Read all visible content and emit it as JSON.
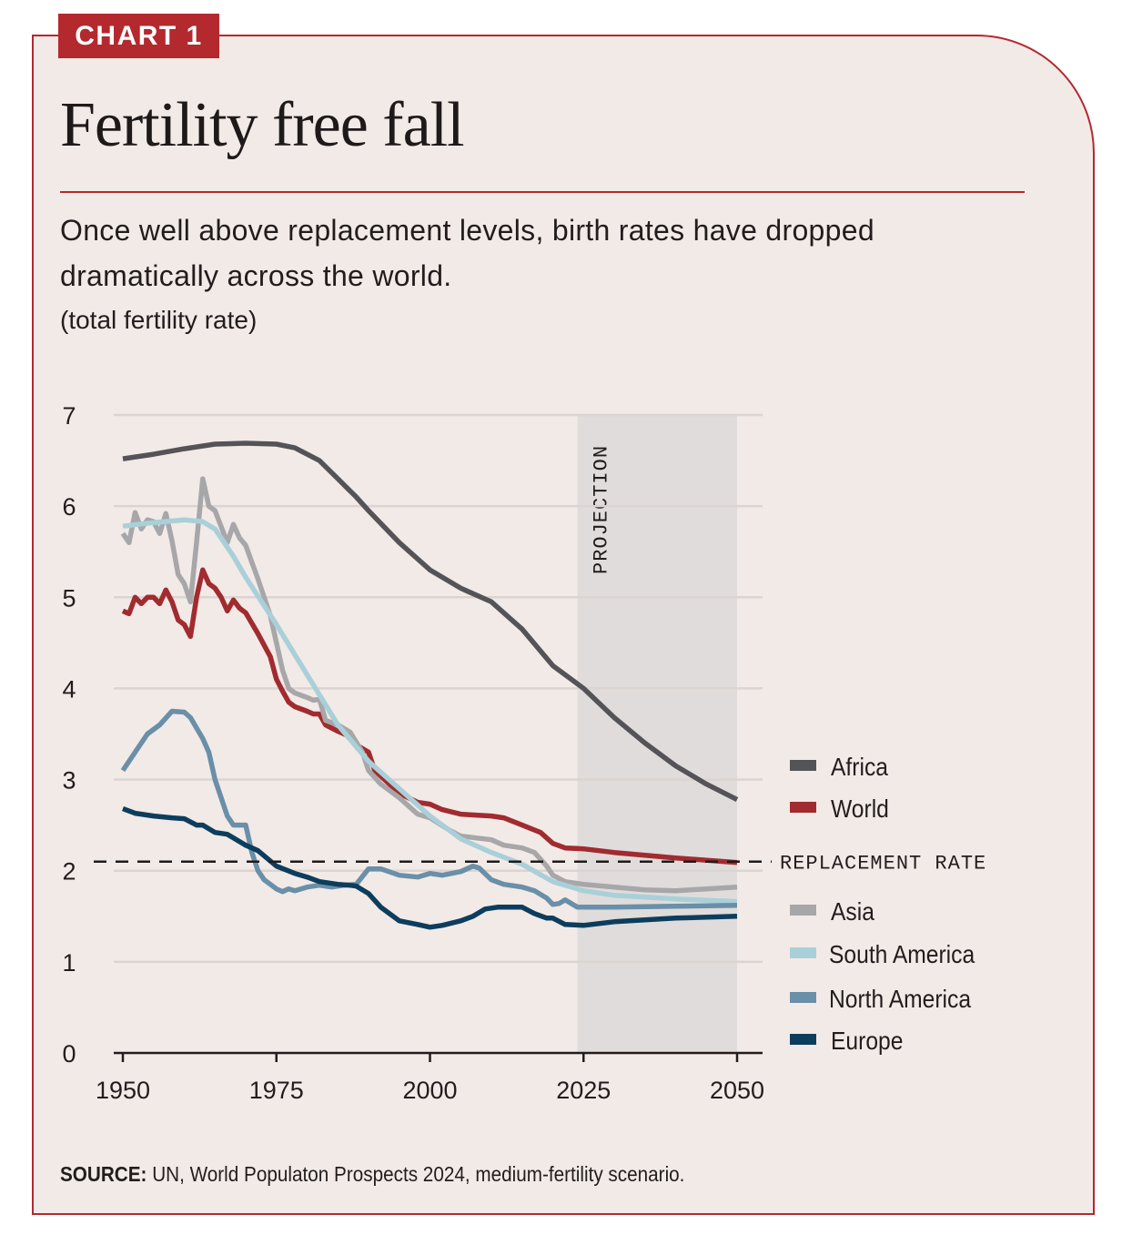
{
  "badge": "CHART 1",
  "title": "Fertility free fall",
  "subtitle": "Once well above replacement levels, birth rates have dropped dramatically across the world.",
  "unit": "(total fertility rate)",
  "source_label": "SOURCE:",
  "source_text": " UN, World Populaton Prospects 2024, medium-fertility scenario.",
  "chart_data": {
    "type": "line",
    "title": "Fertility free fall",
    "ylabel": "total fertility rate",
    "xlim": [
      1950,
      2050
    ],
    "ylim": [
      0,
      7
    ],
    "xticks": [
      1950,
      1975,
      2000,
      2025,
      2050
    ],
    "yticks": [
      0,
      1,
      2,
      3,
      4,
      5,
      6,
      7
    ],
    "grid": "horizontal",
    "legend": "right",
    "projection": {
      "label": "PROJECTION",
      "from": 2024,
      "to": 2050,
      "color": "#e0dcdb"
    },
    "reference": {
      "label": "REPLACEMENT RATE",
      "value": 2.1
    },
    "series": [
      {
        "name": "Africa",
        "color": "#545357",
        "x": [
          1950,
          1955,
          1960,
          1965,
          1970,
          1975,
          1978,
          1982,
          1985,
          1988,
          1990,
          1995,
          2000,
          2005,
          2010,
          2015,
          2020,
          2025,
          2030,
          2035,
          2040,
          2045,
          2050
        ],
        "y": [
          6.52,
          6.57,
          6.63,
          6.68,
          6.69,
          6.68,
          6.64,
          6.5,
          6.3,
          6.1,
          5.95,
          5.6,
          5.3,
          5.1,
          4.95,
          4.65,
          4.25,
          4.0,
          3.68,
          3.4,
          3.15,
          2.95,
          2.78
        ]
      },
      {
        "name": "World",
        "color": "#a12b2f",
        "x": [
          1950,
          1951,
          1952,
          1953,
          1954,
          1955,
          1956,
          1957,
          1958,
          1959,
          1960,
          1961,
          1962,
          1963,
          1964,
          1965,
          1966,
          1967,
          1968,
          1969,
          1970,
          1972,
          1974,
          1975,
          1976,
          1977,
          1978,
          1980,
          1981,
          1982,
          1983,
          1985,
          1987,
          1988,
          1990,
          1991,
          1995,
          1998,
          2000,
          2002,
          2005,
          2010,
          2012,
          2015,
          2018,
          2020,
          2022,
          2025,
          2030,
          2040,
          2050
        ],
        "y": [
          4.85,
          4.82,
          5.0,
          4.93,
          5.0,
          5.0,
          4.93,
          5.08,
          4.95,
          4.75,
          4.7,
          4.57,
          5.0,
          5.3,
          5.15,
          5.1,
          5.0,
          4.85,
          4.97,
          4.88,
          4.83,
          4.6,
          4.35,
          4.1,
          3.97,
          3.85,
          3.8,
          3.75,
          3.72,
          3.72,
          3.6,
          3.53,
          3.47,
          3.38,
          3.3,
          3.1,
          2.85,
          2.75,
          2.73,
          2.67,
          2.62,
          2.6,
          2.58,
          2.5,
          2.42,
          2.3,
          2.25,
          2.24,
          2.2,
          2.14,
          2.09
        ]
      },
      {
        "name": "Asia",
        "color": "#a7a7aa",
        "x": [
          1950,
          1951,
          1952,
          1953,
          1954,
          1955,
          1956,
          1957,
          1958,
          1959,
          1960,
          1961,
          1962,
          1963,
          1964,
          1965,
          1967,
          1968,
          1969,
          1970,
          1972,
          1974,
          1975,
          1976,
          1977,
          1978,
          1980,
          1981,
          1982,
          1983,
          1985,
          1987,
          1989,
          1990,
          1992,
          1995,
          1998,
          2000,
          2003,
          2005,
          2010,
          2012,
          2015,
          2017,
          2019,
          2020,
          2022,
          2025,
          2030,
          2035,
          2040,
          2045,
          2050
        ],
        "y": [
          5.7,
          5.6,
          5.93,
          5.75,
          5.85,
          5.83,
          5.7,
          5.92,
          5.62,
          5.25,
          5.15,
          4.95,
          5.6,
          6.3,
          6.0,
          5.95,
          5.6,
          5.8,
          5.65,
          5.57,
          5.2,
          4.8,
          4.5,
          4.2,
          4.0,
          3.95,
          3.9,
          3.87,
          3.88,
          3.65,
          3.6,
          3.52,
          3.3,
          3.1,
          2.95,
          2.8,
          2.62,
          2.58,
          2.45,
          2.38,
          2.34,
          2.28,
          2.25,
          2.2,
          2.05,
          1.95,
          1.88,
          1.85,
          1.82,
          1.79,
          1.78,
          1.8,
          1.82
        ]
      },
      {
        "name": "South America",
        "color": "#a9d0d8",
        "x": [
          1950,
          1955,
          1960,
          1963,
          1965,
          1968,
          1970,
          1975,
          1980,
          1985,
          1990,
          1995,
          2000,
          2005,
          2010,
          2015,
          2020,
          2025,
          2030,
          2040,
          2050
        ],
        "y": [
          5.78,
          5.82,
          5.85,
          5.83,
          5.75,
          5.45,
          5.22,
          4.7,
          4.15,
          3.6,
          3.2,
          2.9,
          2.6,
          2.35,
          2.2,
          2.07,
          1.88,
          1.78,
          1.73,
          1.69,
          1.66
        ]
      },
      {
        "name": "North America",
        "color": "#6a8fa8",
        "x": [
          1950,
          1952,
          1954,
          1956,
          1958,
          1960,
          1961,
          1963,
          1964,
          1965,
          1967,
          1968,
          1970,
          1971,
          1972,
          1973,
          1975,
          1976,
          1977,
          1978,
          1980,
          1982,
          1984,
          1986,
          1988,
          1990,
          1992,
          1995,
          1998,
          2000,
          2002,
          2005,
          2007,
          2008,
          2010,
          2012,
          2015,
          2017,
          2019,
          2020,
          2021,
          2022,
          2024,
          2030,
          2040,
          2050
        ],
        "y": [
          3.1,
          3.3,
          3.5,
          3.6,
          3.75,
          3.74,
          3.68,
          3.45,
          3.3,
          3.0,
          2.6,
          2.5,
          2.5,
          2.2,
          2.0,
          1.9,
          1.8,
          1.77,
          1.8,
          1.78,
          1.82,
          1.84,
          1.82,
          1.84,
          1.85,
          2.02,
          2.02,
          1.95,
          1.93,
          1.97,
          1.95,
          1.99,
          2.05,
          2.03,
          1.9,
          1.85,
          1.82,
          1.78,
          1.7,
          1.63,
          1.64,
          1.68,
          1.6,
          1.6,
          1.61,
          1.62
        ]
      },
      {
        "name": "Europe",
        "color": "#0d3d5c",
        "x": [
          1950,
          1952,
          1955,
          1958,
          1960,
          1962,
          1963,
          1965,
          1967,
          1970,
          1972,
          1975,
          1978,
          1980,
          1982,
          1985,
          1987,
          1988,
          1990,
          1992,
          1995,
          1998,
          2000,
          2002,
          2005,
          2007,
          2009,
          2011,
          2013,
          2015,
          2017,
          2019,
          2020,
          2022,
          2025,
          2030,
          2040,
          2050
        ],
        "y": [
          2.68,
          2.63,
          2.6,
          2.58,
          2.57,
          2.5,
          2.5,
          2.42,
          2.4,
          2.28,
          2.22,
          2.05,
          1.97,
          1.93,
          1.88,
          1.85,
          1.84,
          1.83,
          1.75,
          1.6,
          1.45,
          1.41,
          1.38,
          1.4,
          1.45,
          1.5,
          1.58,
          1.6,
          1.6,
          1.6,
          1.53,
          1.48,
          1.48,
          1.41,
          1.4,
          1.44,
          1.48,
          1.5
        ]
      }
    ]
  }
}
